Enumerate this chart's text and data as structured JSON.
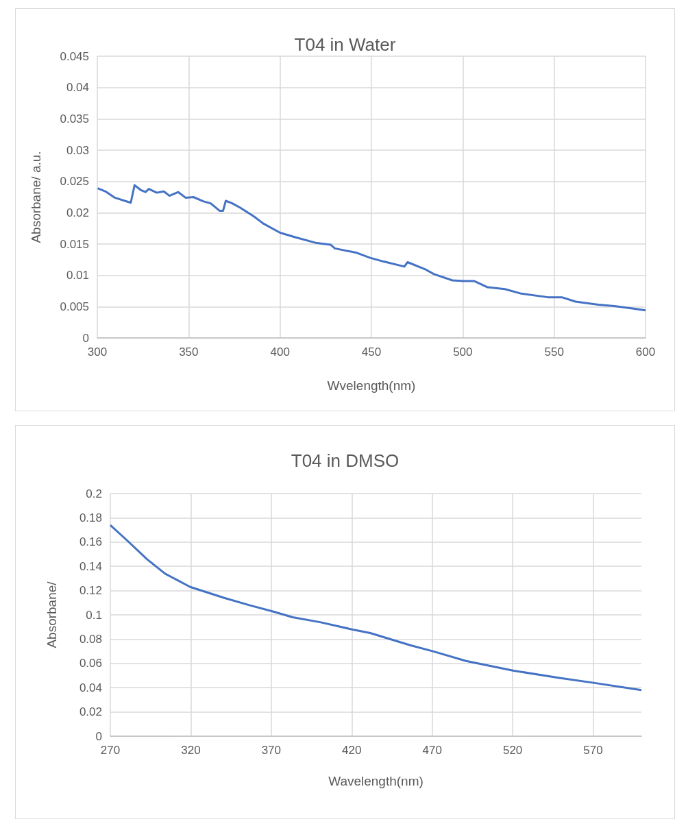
{
  "chart_data": [
    {
      "type": "line",
      "title": "T04 in Water",
      "xlabel": "Wvelength(nm)",
      "ylabel": "Absorbane/ a.u.",
      "marker": "none",
      "grid": true,
      "x": [
        300.2,
        304.5,
        309.6,
        318.3,
        320.4,
        323.9,
        326.4,
        328.2,
        332.5,
        336.4,
        339.5,
        344.3,
        348.3,
        352.6,
        358.2,
        362,
        367,
        368.8,
        370.3,
        373.8,
        378.2,
        385.7,
        390.7,
        400,
        408.2,
        419.4,
        427.6,
        430,
        442,
        449.3,
        456.7,
        468,
        469.8,
        479.2,
        484.2,
        494.3,
        500.5,
        506.1,
        513.6,
        523,
        531.7,
        546.7,
        554.2,
        561.7,
        574.2,
        582.9,
        592.9,
        600
      ],
      "series": [
        {
          "color": "#4472c4",
          "values": [
            0.0239,
            0.0234,
            0.0224,
            0.0216,
            0.0244,
            0.0236,
            0.0233,
            0.0238,
            0.0232,
            0.0234,
            0.0227,
            0.0233,
            0.0224,
            0.0225,
            0.0218,
            0.0215,
            0.0203,
            0.0203,
            0.0219,
            0.0215,
            0.0208,
            0.0194,
            0.0183,
            0.0168,
            0.0161,
            0.0152,
            0.0149,
            0.0143,
            0.0136,
            0.0128,
            0.0122,
            0.0114,
            0.0121,
            0.011,
            0.0102,
            0.0092,
            0.0091,
            0.0091,
            0.0081,
            0.0078,
            0.0071,
            0.0065,
            0.0065,
            0.0058,
            0.0053,
            0.0051,
            0.0047,
            0.0044
          ]
        }
      ],
      "xlim": [
        300,
        600
      ],
      "xticks": [
        300,
        350,
        400,
        450,
        500,
        550,
        600
      ],
      "ylim": [
        0,
        0.045
      ],
      "yticks": [
        0,
        0.005,
        0.01,
        0.015,
        0.02,
        0.025,
        0.03,
        0.035,
        0.04,
        0.045
      ]
    },
    {
      "type": "line",
      "title": "T04 in DMSO",
      "xlabel": "Wavelength(nm)",
      "ylabel": "Absorbane/",
      "marker": "none",
      "grid": true,
      "x": [
        270,
        279.9,
        292.7,
        304,
        319.6,
        340.8,
        356.4,
        370.6,
        383.3,
        400.3,
        420.2,
        431.5,
        456.3,
        470.5,
        491,
        520.7,
        549.1,
        570.3,
        600
      ],
      "series": [
        {
          "color": "#4472c4",
          "values": [
            0.174,
            0.162,
            0.146,
            0.134,
            0.123,
            0.114,
            0.108,
            0.103,
            0.098,
            0.094,
            0.088,
            0.085,
            0.075,
            0.07,
            0.062,
            0.054,
            0.048,
            0.044,
            0.038
          ]
        }
      ],
      "xlim": [
        270,
        600
      ],
      "xticks": [
        270,
        320,
        370,
        420,
        470,
        520,
        570
      ],
      "ylim": [
        0,
        0.2
      ],
      "yticks": [
        0,
        0.02,
        0.04,
        0.06,
        0.08,
        0.1,
        0.12,
        0.14,
        0.16,
        0.18,
        0.2
      ]
    }
  ]
}
